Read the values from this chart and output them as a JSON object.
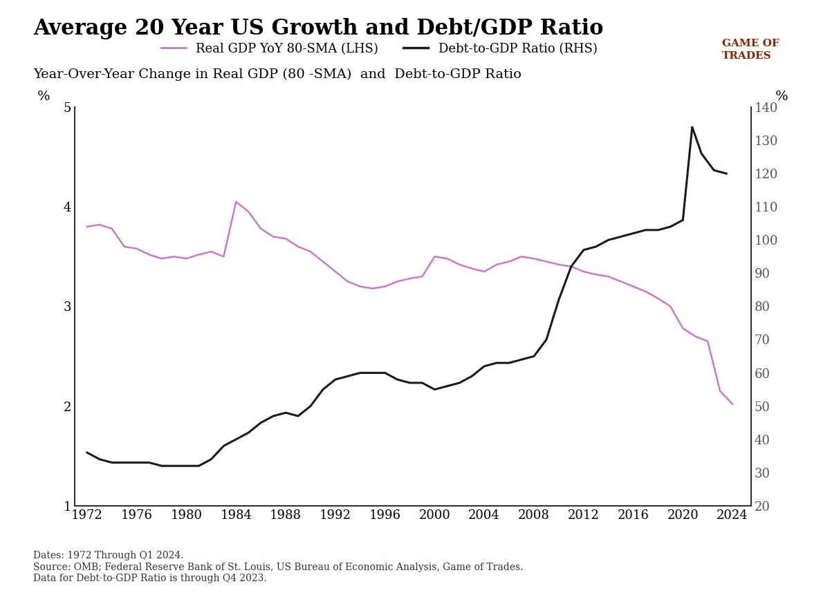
{
  "title": "Average 20 Year US Growth and Debt/GDP Ratio",
  "subtitle": "Year-Over-Year Change in Real GDP (80 -SMA)  and  Debt-to-GDP Ratio",
  "source_text": "Dates: 1972 Through Q1 2024.\nSource: OMB; Federal Reserve Bank of St. Louis, US Bureau of Economic Analysis, Game of Trades.\nData for Debt-to-GDP Ratio is through Q4 2023.",
  "lhs_label": "%",
  "rhs_label": "%",
  "lhs_yticks": [
    1,
    2,
    3,
    4,
    5
  ],
  "lhs_ylim": [
    1,
    5
  ],
  "rhs_yticks": [
    20,
    30,
    40,
    50,
    60,
    70,
    80,
    90,
    100,
    110,
    120,
    130,
    140
  ],
  "rhs_ylim": [
    20,
    140
  ],
  "xticks": [
    1972,
    1976,
    1980,
    1984,
    1988,
    1992,
    1996,
    2000,
    2004,
    2008,
    2012,
    2016,
    2020,
    2024
  ],
  "xlim": [
    1971,
    2025.5
  ],
  "gdp_color": "#c878c8",
  "debt_color": "#1a1a1a",
  "background_color": "#ffffff",
  "legend_gdp": "Real GDP YoY 80-SMA (LHS)",
  "legend_debt": "Debt-to-GDP Ratio (RHS)",
  "gdp_x": [
    1972,
    1973,
    1974,
    1975,
    1976,
    1977,
    1978,
    1979,
    1980,
    1981,
    1982,
    1983,
    1984,
    1985,
    1986,
    1987,
    1988,
    1989,
    1990,
    1991,
    1992,
    1993,
    1994,
    1995,
    1996,
    1997,
    1998,
    1999,
    2000,
    2001,
    2002,
    2003,
    2004,
    2005,
    2006,
    2007,
    2008,
    2009,
    2010,
    2011,
    2012,
    2013,
    2014,
    2015,
    2016,
    2017,
    2018,
    2019,
    2020,
    2021,
    2022,
    2023,
    2024
  ],
  "gdp_y": [
    3.8,
    3.82,
    3.78,
    3.6,
    3.58,
    3.52,
    3.48,
    3.5,
    3.48,
    3.52,
    3.55,
    3.5,
    4.05,
    3.95,
    3.78,
    3.7,
    3.68,
    3.6,
    3.55,
    3.45,
    3.35,
    3.25,
    3.2,
    3.18,
    3.2,
    3.25,
    3.28,
    3.3,
    3.5,
    3.48,
    3.42,
    3.38,
    3.35,
    3.42,
    3.45,
    3.5,
    3.48,
    3.45,
    3.42,
    3.4,
    3.35,
    3.32,
    3.3,
    3.25,
    3.2,
    3.15,
    3.08,
    3.0,
    2.78,
    2.7,
    2.65,
    2.15,
    2.02
  ],
  "debt_x": [
    1972,
    1973,
    1974,
    1975,
    1976,
    1977,
    1978,
    1979,
    1980,
    1981,
    1982,
    1983,
    1984,
    1985,
    1986,
    1987,
    1988,
    1989,
    1990,
    1991,
    1992,
    1993,
    1994,
    1995,
    1996,
    1997,
    1998,
    1999,
    2000,
    2001,
    2002,
    2003,
    2004,
    2005,
    2006,
    2007,
    2008,
    2009,
    2010,
    2011,
    2012,
    2013,
    2014,
    2015,
    2016,
    2017,
    2018,
    2019,
    2020,
    2020.75,
    2021.5,
    2022.5,
    2023.5
  ],
  "debt_y": [
    36,
    34,
    33,
    33,
    33,
    33,
    32,
    32,
    32,
    32,
    34,
    38,
    40,
    42,
    45,
    47,
    48,
    47,
    50,
    55,
    58,
    59,
    60,
    60,
    60,
    58,
    57,
    57,
    55,
    56,
    57,
    59,
    62,
    63,
    63,
    64,
    65,
    70,
    82,
    92,
    97,
    98,
    100,
    101,
    102,
    103,
    103,
    104,
    106,
    134,
    126,
    121,
    120
  ]
}
